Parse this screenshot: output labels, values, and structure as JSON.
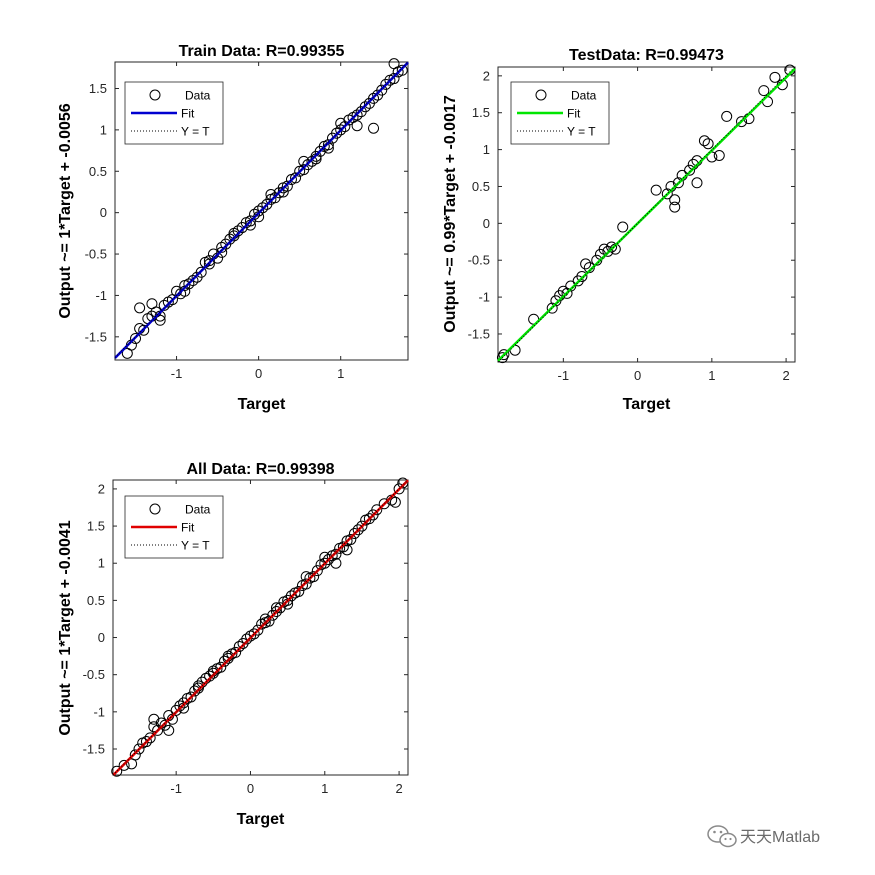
{
  "figure": {
    "background": "#ffffff"
  },
  "chart_data": [
    {
      "type": "scatter",
      "title": "Train Data: R=0.99355",
      "xlabel": "Target",
      "ylabel": "Output ~= 1*Target + -0.0056",
      "xlim": [
        -1.75,
        1.82
      ],
      "ylim": [
        -1.78,
        1.82
      ],
      "xticks": [
        -1,
        0,
        1
      ],
      "yticks": [
        -1.5,
        -1,
        -0.5,
        0,
        0.5,
        1,
        1.5
      ],
      "fit": {
        "slope": 1.0,
        "intercept": -0.0056,
        "color": "#0000d0"
      },
      "legend": {
        "placement": "top-left",
        "entries": [
          "Data",
          "Fit",
          "Y = T"
        ]
      },
      "series": [
        {
          "name": "Data",
          "marker": "open-circle",
          "color": "#000000",
          "x": [
            -1.6,
            -1.55,
            -1.5,
            -1.45,
            -1.4,
            -1.35,
            -1.3,
            -1.25,
            -1.2,
            -1.15,
            -1.1,
            -1.05,
            -1.0,
            -0.95,
            -0.9,
            -0.85,
            -0.8,
            -0.75,
            -0.7,
            -0.65,
            -0.6,
            -0.55,
            -0.5,
            -0.45,
            -0.4,
            -0.35,
            -0.3,
            -0.25,
            -0.2,
            -0.15,
            -0.1,
            -0.05,
            0.0,
            0.05,
            0.1,
            0.15,
            0.2,
            0.25,
            0.3,
            0.35,
            0.4,
            0.45,
            0.5,
            0.55,
            0.6,
            0.65,
            0.7,
            0.75,
            0.8,
            0.85,
            0.9,
            0.95,
            1.0,
            1.05,
            1.1,
            1.15,
            1.2,
            1.25,
            1.3,
            1.35,
            1.4,
            1.45,
            1.5,
            1.55,
            1.6,
            1.65,
            1.7,
            1.75,
            -1.3,
            -1.2,
            -0.9,
            -0.6,
            -0.3,
            0.0,
            0.3,
            0.55,
            0.85,
            1.0,
            1.2,
            -0.45,
            0.15,
            1.4,
            0.7,
            -0.1,
            -1.45,
            1.65
          ],
          "y": [
            -1.7,
            -1.6,
            -1.52,
            -1.4,
            -1.42,
            -1.28,
            -1.25,
            -1.2,
            -1.3,
            -1.12,
            -1.08,
            -1.05,
            -0.95,
            -0.98,
            -0.88,
            -0.86,
            -0.82,
            -0.78,
            -0.72,
            -0.6,
            -0.58,
            -0.5,
            -0.55,
            -0.42,
            -0.38,
            -0.32,
            -0.28,
            -0.22,
            -0.18,
            -0.12,
            -0.1,
            -0.02,
            0.02,
            0.06,
            0.1,
            0.16,
            0.18,
            0.24,
            0.3,
            0.32,
            0.4,
            0.42,
            0.5,
            0.52,
            0.58,
            0.62,
            0.68,
            0.74,
            0.8,
            0.82,
            0.9,
            0.96,
            1.0,
            1.04,
            1.12,
            1.15,
            1.18,
            1.22,
            1.28,
            1.32,
            1.38,
            1.42,
            1.48,
            1.55,
            1.6,
            1.62,
            1.7,
            1.72,
            -1.1,
            -1.25,
            -0.95,
            -0.62,
            -0.25,
            -0.05,
            0.25,
            0.62,
            0.78,
            1.08,
            1.05,
            -0.48,
            0.22,
            1.02,
            0.65,
            -0.15,
            -1.15,
            1.8
          ]
        }
      ]
    },
    {
      "type": "scatter",
      "title": "TestData: R=0.99473",
      "xlabel": "Target",
      "ylabel": "Output ~= 0.99*Target + -0.0017",
      "xlim": [
        -1.88,
        2.12
      ],
      "ylim": [
        -1.88,
        2.12
      ],
      "xticks": [
        -1,
        0,
        1,
        2
      ],
      "yticks": [
        -1.5,
        -1,
        -0.5,
        0,
        0.5,
        1,
        1.5,
        2
      ],
      "fit": {
        "slope": 0.99,
        "intercept": -0.0017,
        "color": "#00e600"
      },
      "legend": {
        "placement": "top-left",
        "entries": [
          "Data",
          "Fit",
          "Y = T"
        ]
      },
      "series": [
        {
          "name": "Data",
          "marker": "open-circle",
          "color": "#000000",
          "x": [
            -1.82,
            -1.8,
            -1.65,
            -1.4,
            -1.15,
            -1.1,
            -1.05,
            -1.0,
            -0.95,
            -0.9,
            -0.8,
            -0.75,
            -0.7,
            -0.65,
            -0.55,
            -0.5,
            -0.45,
            -0.4,
            -0.35,
            -0.3,
            -0.2,
            0.25,
            0.4,
            0.45,
            0.5,
            0.55,
            0.6,
            0.7,
            0.75,
            0.8,
            0.9,
            0.95,
            1.0,
            1.1,
            1.2,
            1.4,
            1.5,
            1.7,
            1.75,
            1.85,
            1.95,
            2.05,
            0.8,
            0.5
          ],
          "y": [
            -1.82,
            -1.78,
            -1.72,
            -1.3,
            -1.15,
            -1.05,
            -0.98,
            -0.92,
            -0.95,
            -0.85,
            -0.78,
            -0.72,
            -0.55,
            -0.6,
            -0.5,
            -0.42,
            -0.35,
            -0.38,
            -0.32,
            -0.35,
            -0.05,
            0.45,
            0.4,
            0.5,
            0.32,
            0.55,
            0.65,
            0.72,
            0.8,
            0.85,
            1.12,
            1.08,
            0.9,
            0.92,
            1.45,
            1.38,
            1.42,
            1.8,
            1.65,
            1.98,
            1.88,
            2.08,
            0.55,
            0.22
          ]
        }
      ]
    },
    {
      "type": "scatter",
      "title": "All Data: R=0.99398",
      "xlabel": "Target",
      "ylabel": "Output ~= 1*Target + -0.0041",
      "xlim": [
        -1.85,
        2.12
      ],
      "ylim": [
        -1.85,
        2.12
      ],
      "xticks": [
        -1,
        0,
        1,
        2
      ],
      "yticks": [
        -1.5,
        -1,
        -0.5,
        0,
        0.5,
        1,
        1.5,
        2
      ],
      "fit": {
        "slope": 1.0,
        "intercept": -0.0041,
        "color": "#e00000"
      },
      "legend": {
        "placement": "top-left",
        "entries": [
          "Data",
          "Fit",
          "Y = T"
        ]
      },
      "series": [
        {
          "name": "Data",
          "marker": "open-circle",
          "color": "#000000",
          "x": [
            -1.8,
            -1.7,
            -1.6,
            -1.55,
            -1.5,
            -1.45,
            -1.4,
            -1.35,
            -1.3,
            -1.25,
            -1.2,
            -1.15,
            -1.1,
            -1.05,
            -1.0,
            -0.95,
            -0.9,
            -0.85,
            -0.8,
            -0.75,
            -0.7,
            -0.65,
            -0.6,
            -0.55,
            -0.5,
            -0.45,
            -0.4,
            -0.35,
            -0.3,
            -0.25,
            -0.2,
            -0.15,
            -0.1,
            -0.05,
            0.0,
            0.05,
            0.1,
            0.15,
            0.2,
            0.25,
            0.3,
            0.35,
            0.4,
            0.45,
            0.5,
            0.55,
            0.6,
            0.65,
            0.7,
            0.75,
            0.8,
            0.85,
            0.9,
            0.95,
            1.0,
            1.05,
            1.1,
            1.15,
            1.2,
            1.25,
            1.3,
            1.35,
            1.4,
            1.45,
            1.5,
            1.55,
            1.6,
            1.7,
            1.8,
            1.9,
            2.0,
            2.05,
            -1.3,
            -1.1,
            -0.9,
            -0.7,
            -0.3,
            0.2,
            0.5,
            0.75,
            1.0,
            1.3,
            1.65,
            1.95,
            -0.5,
            0.35,
            1.15
          ],
          "y": [
            -1.8,
            -1.72,
            -1.7,
            -1.58,
            -1.5,
            -1.42,
            -1.4,
            -1.35,
            -1.2,
            -1.25,
            -1.15,
            -1.18,
            -1.05,
            -1.1,
            -0.98,
            -0.92,
            -0.88,
            -0.82,
            -0.8,
            -0.72,
            -0.68,
            -0.6,
            -0.55,
            -0.52,
            -0.48,
            -0.42,
            -0.4,
            -0.32,
            -0.28,
            -0.22,
            -0.2,
            -0.12,
            -0.08,
            -0.02,
            0.02,
            0.05,
            0.1,
            0.18,
            0.2,
            0.22,
            0.3,
            0.35,
            0.4,
            0.48,
            0.5,
            0.56,
            0.6,
            0.62,
            0.7,
            0.72,
            0.8,
            0.82,
            0.9,
            0.98,
            1.0,
            1.05,
            1.1,
            1.12,
            1.2,
            1.22,
            1.3,
            1.32,
            1.4,
            1.45,
            1.5,
            1.58,
            1.6,
            1.72,
            1.8,
            1.85,
            2.0,
            2.08,
            -1.1,
            -1.25,
            -0.95,
            -0.65,
            -0.25,
            0.25,
            0.45,
            0.82,
            1.08,
            1.18,
            1.65,
            1.82,
            -0.45,
            0.4,
            1.0
          ]
        }
      ]
    }
  ],
  "watermark": {
    "text": "天天Matlab",
    "icon": "wechat-icon",
    "color": "#8a8a8a"
  }
}
